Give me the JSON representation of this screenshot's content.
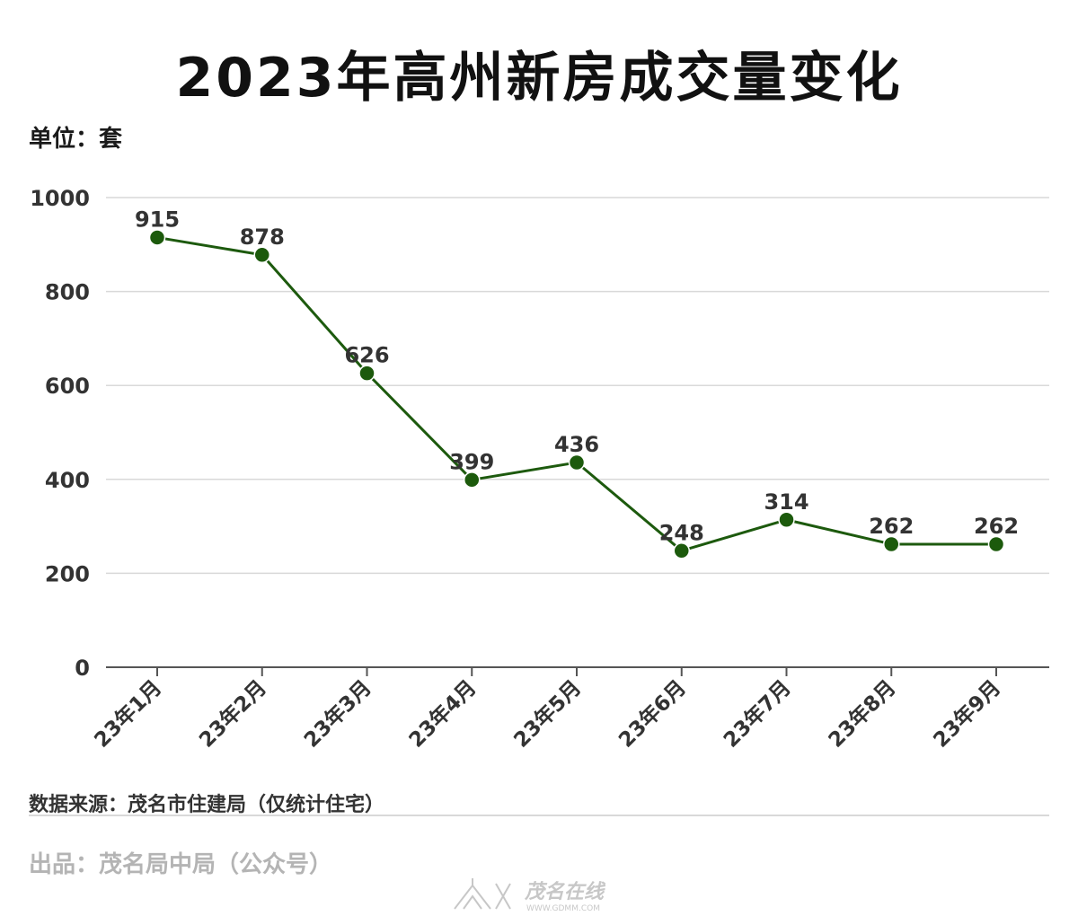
{
  "title": "2023年高州新房成交量变化",
  "unit_label": "单位：套",
  "source_label": "数据来源：茂名市住建局（仅统计住宅）",
  "publisher_label": "出品：茂名局中局（公众号）",
  "watermark": {
    "name_text": "茂名在线",
    "url_text": "WWW.GDMM.COM"
  },
  "colors": {
    "line": "#1d5a0e",
    "marker": "#1c5a0c",
    "label": "#333333",
    "grid": "#d9d9d9",
    "axis": "#555555"
  },
  "chart_data": {
    "type": "line",
    "title": "2023年高州新房成交量变化",
    "ylabel": "单位：套",
    "xlabel": "",
    "categories": [
      "23年1月",
      "23年2月",
      "23年3月",
      "23年4月",
      "23年5月",
      "23年6月",
      "23年7月",
      "23年8月",
      "23年9月"
    ],
    "values": [
      915,
      878,
      626,
      399,
      436,
      248,
      314,
      262,
      262
    ],
    "ylim": [
      0,
      1000
    ],
    "yticks": [
      0,
      200,
      400,
      600,
      800,
      1000
    ],
    "grid": true,
    "legend": "none",
    "data_labels": true
  }
}
